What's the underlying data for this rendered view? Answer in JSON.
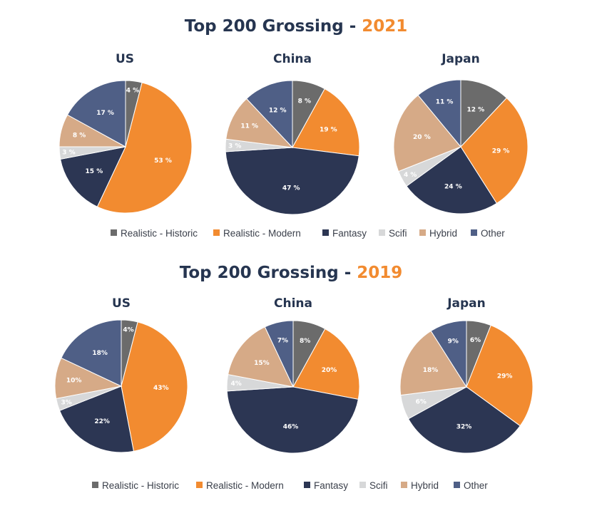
{
  "colors": {
    "Realistic - Historic": "#6b6b6b",
    "Realistic - Modern": "#f28b30",
    "Fantasy": "#2c3653",
    "Scifi": "#d7d8d9",
    "Hybrid": "#d6aa87",
    "Other": "#4f5f86",
    "title_dark": "#263550",
    "title_accent": "#f28b30"
  },
  "legend": [
    "Realistic - Historic",
    "Realistic - Modern",
    "Fantasy",
    "Scifi",
    "Hybrid",
    "Other"
  ],
  "chart_data": [
    {
      "type": "pie",
      "group_title": "Top 200 Grossing - ",
      "year": "2021",
      "charts": [
        {
          "title": "US",
          "slices": [
            {
              "category": "Realistic - Historic",
              "value": 4,
              "label": "4 %"
            },
            {
              "category": "Realistic - Modern",
              "value": 53,
              "label": "53 %"
            },
            {
              "category": "Fantasy",
              "value": 15,
              "label": "15 %"
            },
            {
              "category": "Scifi",
              "value": 3,
              "label": "3 %"
            },
            {
              "category": "Hybrid",
              "value": 8,
              "label": "8 %"
            },
            {
              "category": "Other",
              "value": 17,
              "label": "17 %"
            }
          ]
        },
        {
          "title": "China",
          "slices": [
            {
              "category": "Realistic - Historic",
              "value": 8,
              "label": "8 %"
            },
            {
              "category": "Realistic - Modern",
              "value": 19,
              "label": "19 %"
            },
            {
              "category": "Fantasy",
              "value": 47,
              "label": "47 %"
            },
            {
              "category": "Scifi",
              "value": 3,
              "label": "3 %"
            },
            {
              "category": "Hybrid",
              "value": 11,
              "label": "11 %"
            },
            {
              "category": "Other",
              "value": 12,
              "label": "12 %"
            }
          ]
        },
        {
          "title": "Japan",
          "slices": [
            {
              "category": "Realistic - Historic",
              "value": 12,
              "label": "12 %"
            },
            {
              "category": "Realistic - Modern",
              "value": 29,
              "label": "29 %"
            },
            {
              "category": "Fantasy",
              "value": 24,
              "label": "24 %"
            },
            {
              "category": "Scifi",
              "value": 4,
              "label": "4 %"
            },
            {
              "category": "Hybrid",
              "value": 20,
              "label": "20 %"
            },
            {
              "category": "Other",
              "value": 11,
              "label": "11 %"
            }
          ]
        }
      ]
    },
    {
      "type": "pie",
      "group_title": "Top 200 Grossing - ",
      "year": "2019",
      "charts": [
        {
          "title": "US",
          "slices": [
            {
              "category": "Realistic - Historic",
              "value": 4,
              "label": "4%"
            },
            {
              "category": "Realistic - Modern",
              "value": 43,
              "label": "43%"
            },
            {
              "category": "Fantasy",
              "value": 22,
              "label": "22%"
            },
            {
              "category": "Scifi",
              "value": 3,
              "label": "3%"
            },
            {
              "category": "Hybrid",
              "value": 10,
              "label": "10%"
            },
            {
              "category": "Other",
              "value": 18,
              "label": "18%"
            }
          ]
        },
        {
          "title": "China",
          "slices": [
            {
              "category": "Realistic - Historic",
              "value": 8,
              "label": "8%"
            },
            {
              "category": "Realistic - Modern",
              "value": 20,
              "label": "20%"
            },
            {
              "category": "Fantasy",
              "value": 46,
              "label": "46%"
            },
            {
              "category": "Scifi",
              "value": 4,
              "label": "4%"
            },
            {
              "category": "Hybrid",
              "value": 15,
              "label": "15%"
            },
            {
              "category": "Other",
              "value": 7,
              "label": "7%"
            }
          ]
        },
        {
          "title": "Japan",
          "slices": [
            {
              "category": "Realistic - Historic",
              "value": 6,
              "label": "6%"
            },
            {
              "category": "Realistic - Modern",
              "value": 29,
              "label": "29%"
            },
            {
              "category": "Fantasy",
              "value": 32,
              "label": "32%"
            },
            {
              "category": "Scifi",
              "value": 6,
              "label": "6%"
            },
            {
              "category": "Hybrid",
              "value": 18,
              "label": "18%"
            },
            {
              "category": "Other",
              "value": 9,
              "label": "9%"
            }
          ]
        }
      ]
    }
  ]
}
